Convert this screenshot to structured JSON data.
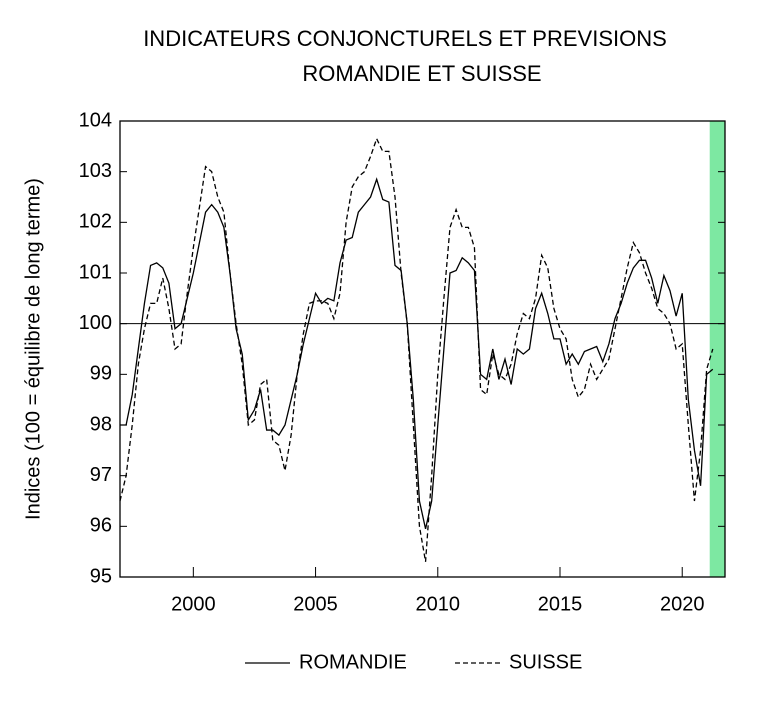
{
  "chart_data": {
    "type": "line",
    "title": "INDICATEURS CONJONCTURELS ET PREVISIONS",
    "subtitle": "ROMANDIE ET SUISSE",
    "y_label": "Indices (100 = équilibre de long terme)",
    "x": [
      1997,
      1997.25,
      1997.5,
      1997.75,
      1998,
      1998.25,
      1998.5,
      1998.75,
      1999,
      1999.25,
      1999.5,
      1999.75,
      2000,
      2000.25,
      2000.5,
      2000.75,
      2001,
      2001.25,
      2001.5,
      2001.75,
      2002,
      2002.25,
      2002.5,
      2002.75,
      2003,
      2003.25,
      2003.5,
      2003.75,
      2004,
      2004.25,
      2004.5,
      2004.75,
      2005,
      2005.25,
      2005.5,
      2005.75,
      2006,
      2006.25,
      2006.5,
      2006.75,
      2007,
      2007.25,
      2007.5,
      2007.75,
      2008,
      2008.25,
      2008.5,
      2008.75,
      2009,
      2009.25,
      2009.5,
      2009.75,
      2010,
      2010.25,
      2010.5,
      2010.75,
      2011,
      2011.25,
      2011.5,
      2011.75,
      2012,
      2012.25,
      2012.5,
      2012.75,
      2013,
      2013.25,
      2013.5,
      2013.75,
      2014,
      2014.25,
      2014.5,
      2014.75,
      2015,
      2015.25,
      2015.5,
      2015.75,
      2016,
      2016.25,
      2016.5,
      2016.75,
      2017,
      2017.25,
      2017.5,
      2017.75,
      2018,
      2018.25,
      2018.5,
      2018.75,
      2019,
      2019.25,
      2019.5,
      2019.75,
      2020,
      2020.25,
      2020.5,
      2020.75,
      2021,
      2021.25
    ],
    "series": [
      {
        "name": "ROMANDIE",
        "color": "#000000",
        "dash": false,
        "values": [
          98.0,
          98.0,
          98.6,
          99.5,
          100.4,
          101.15,
          101.2,
          101.1,
          100.8,
          99.9,
          100.0,
          100.5,
          101.0,
          101.6,
          102.2,
          102.35,
          102.2,
          101.9,
          101.0,
          99.9,
          99.4,
          98.1,
          98.3,
          98.7,
          97.9,
          97.9,
          97.8,
          98.0,
          98.5,
          99.0,
          99.6,
          100.1,
          100.6,
          100.4,
          100.5,
          100.45,
          101.2,
          101.65,
          101.7,
          102.2,
          102.35,
          102.5,
          102.85,
          102.45,
          102.4,
          101.15,
          101.05,
          100.0,
          98.5,
          96.5,
          95.95,
          96.5,
          98.0,
          99.5,
          101.0,
          101.05,
          101.3,
          101.2,
          101.05,
          99.0,
          98.9,
          99.5,
          98.9,
          99.3,
          98.8,
          99.5,
          99.4,
          99.5,
          100.3,
          100.6,
          100.2,
          99.7,
          99.7,
          99.2,
          99.4,
          99.2,
          99.45,
          99.5,
          99.55,
          99.25,
          99.6,
          100.1,
          100.4,
          100.8,
          101.1,
          101.25,
          101.25,
          100.9,
          100.4,
          100.95,
          100.65,
          100.15,
          100.6,
          98.5,
          97.5,
          96.8,
          99.0,
          99.1
        ]
      },
      {
        "name": "SUISSE",
        "color": "#000000",
        "dash": true,
        "values": [
          96.5,
          97.0,
          98.0,
          99.2,
          99.9,
          100.4,
          100.4,
          100.9,
          100.3,
          99.5,
          99.6,
          100.6,
          101.5,
          102.3,
          103.1,
          103.0,
          102.5,
          102.2,
          101.0,
          100.0,
          99.2,
          98.0,
          98.1,
          98.8,
          98.9,
          97.7,
          97.6,
          97.1,
          97.8,
          99.0,
          99.8,
          100.4,
          100.45,
          100.45,
          100.4,
          100.1,
          100.6,
          102.0,
          102.7,
          102.9,
          103.0,
          103.3,
          103.65,
          103.4,
          103.4,
          102.5,
          101.0,
          100.0,
          98.0,
          96.0,
          95.3,
          97.0,
          99.0,
          100.5,
          101.9,
          102.25,
          101.9,
          101.9,
          101.5,
          98.7,
          98.6,
          99.4,
          99.0,
          98.9,
          99.2,
          99.8,
          100.2,
          100.1,
          100.5,
          101.35,
          101.1,
          100.3,
          99.9,
          99.7,
          98.9,
          98.55,
          98.7,
          99.2,
          98.9,
          99.1,
          99.3,
          99.9,
          100.5,
          101.1,
          101.6,
          101.4,
          101.0,
          100.7,
          100.3,
          100.2,
          100.0,
          99.5,
          99.6,
          98.0,
          96.5,
          97.5,
          99.1,
          99.5
        ]
      }
    ],
    "xlim": [
      1997,
      2021.75
    ],
    "xticks": [
      2000,
      2005,
      2010,
      2015,
      2020
    ],
    "ylim": [
      95,
      104
    ],
    "yticks": [
      95,
      96,
      97,
      98,
      99,
      100,
      101,
      102,
      103,
      104
    ],
    "reference_line": 100,
    "shaded_region": {
      "range": [
        2021.125,
        2021.75
      ],
      "color": "#7de8a2"
    },
    "legend": "bottom"
  }
}
